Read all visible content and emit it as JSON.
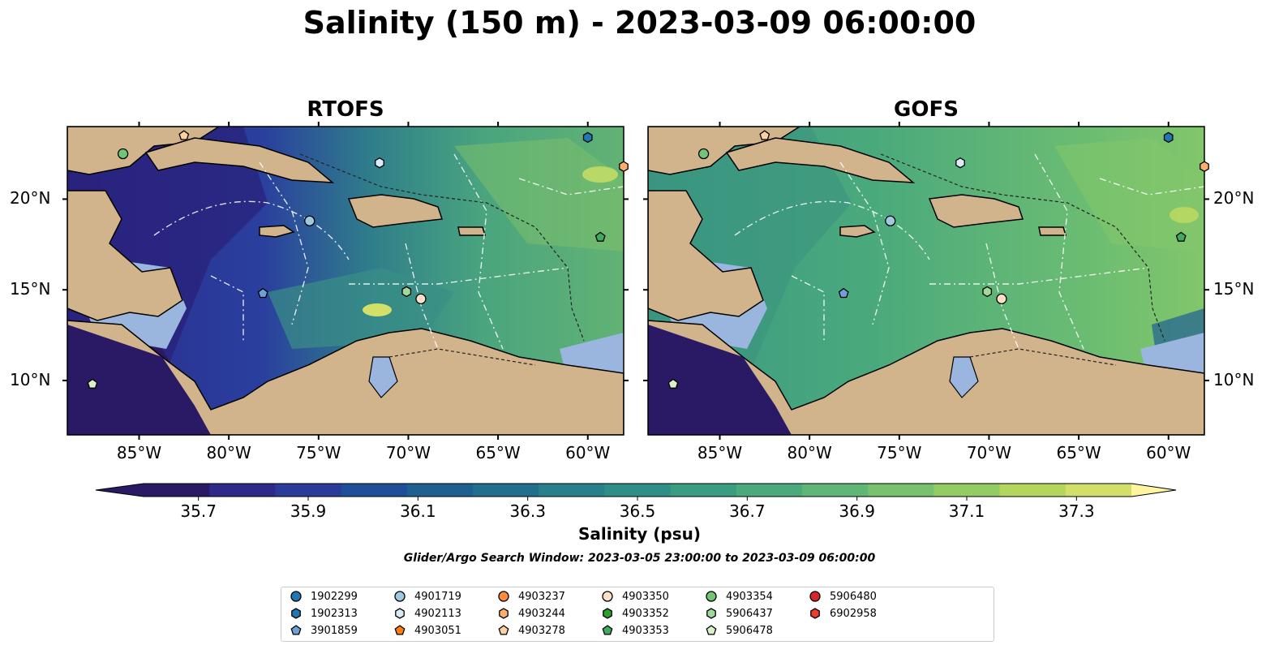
{
  "title": "Salinity (150 m) - 2023-03-09 06:00:00",
  "panels": [
    {
      "title": "RTOFS",
      "map_style": "fresher"
    },
    {
      "title": "GOFS",
      "map_style": "saltier"
    }
  ],
  "axes": {
    "lon_ticks": [
      "85°W",
      "80°W",
      "75°W",
      "70°W",
      "65°W",
      "60°W"
    ],
    "lat_ticks": [
      "20°N",
      "15°N",
      "10°N"
    ],
    "lon_range": [
      -89,
      -58
    ],
    "lat_range": [
      7,
      24
    ]
  },
  "colorbar": {
    "label": "Salinity (psu)",
    "ticks": [
      "35.7",
      "35.9",
      "36.1",
      "36.3",
      "36.5",
      "36.7",
      "36.9",
      "37.1",
      "37.3"
    ],
    "range": [
      35.6,
      37.4
    ],
    "colors": [
      "#2a1a66",
      "#2d2a8a",
      "#2b3b9a",
      "#1f4f98",
      "#1f6090",
      "#216f8c",
      "#27808a",
      "#2f8f88",
      "#3a9d82",
      "#4aaa7c",
      "#5fb676",
      "#78c16d",
      "#93cc63",
      "#b2d65e",
      "#d2e06a"
    ],
    "extend": "both"
  },
  "search_window": "Glider/Argo Search Window: 2023-03-05 23:00:00 to 2023-03-09 06:00:00",
  "legend": [
    {
      "id": "1902299",
      "marker": "circle",
      "color": "#1f77b4"
    },
    {
      "id": "1902313",
      "marker": "hexagon",
      "color": "#1f77b4"
    },
    {
      "id": "3901859",
      "marker": "pentagon",
      "color": "#6ca0d8"
    },
    {
      "id": "4901719",
      "marker": "circle",
      "color": "#9ecae1"
    },
    {
      "id": "4902113",
      "marker": "hexagon",
      "color": "#d8ecf7"
    },
    {
      "id": "4903051",
      "marker": "pentagon",
      "color": "#ff7f0e"
    },
    {
      "id": "4903237",
      "marker": "circle",
      "color": "#fd8d3c"
    },
    {
      "id": "4903244",
      "marker": "hexagon",
      "color": "#fdae6b"
    },
    {
      "id": "4903278",
      "marker": "pentagon",
      "color": "#fdd0a2"
    },
    {
      "id": "4903350",
      "marker": "circle",
      "color": "#fde0c8"
    },
    {
      "id": "4903352",
      "marker": "hexagon",
      "color": "#2ca02c"
    },
    {
      "id": "4903353",
      "marker": "pentagon",
      "color": "#41ab5d"
    },
    {
      "id": "4903354",
      "marker": "circle",
      "color": "#74c476"
    },
    {
      "id": "5906437",
      "marker": "hexagon",
      "color": "#a1d99b"
    },
    {
      "id": "5906478",
      "marker": "pentagon",
      "color": "#d9f0c8"
    },
    {
      "id": "5906480",
      "marker": "circle",
      "color": "#d62728"
    },
    {
      "id": "6902958",
      "marker": "hexagon",
      "color": "#ef3b2c"
    }
  ],
  "floats_on_map": [
    {
      "id": "4903354",
      "lon": -85.9,
      "lat": 22.5
    },
    {
      "id": "4903278",
      "lon": -82.5,
      "lat": 23.5
    },
    {
      "id": "1902313",
      "lon": -60.0,
      "lat": 23.4
    },
    {
      "id": "4902113",
      "lon": -71.6,
      "lat": 22.0
    },
    {
      "id": "4901719",
      "lon": -75.5,
      "lat": 18.8
    },
    {
      "id": "4903353",
      "lon": -59.3,
      "lat": 17.9
    },
    {
      "id": "3901859",
      "lon": -78.1,
      "lat": 14.8
    },
    {
      "id": "5906437",
      "lon": -70.1,
      "lat": 14.9
    },
    {
      "id": "4903350",
      "lon": -69.3,
      "lat": 14.5
    },
    {
      "id": "5906478",
      "lon": -87.6,
      "lat": 9.8
    },
    {
      "id": "4903244",
      "lon": -58.0,
      "lat": 21.8
    }
  ]
}
